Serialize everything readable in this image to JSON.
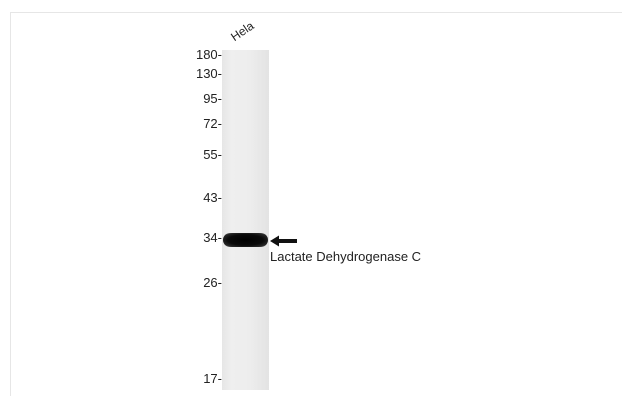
{
  "lane": {
    "label": "Hela"
  },
  "markers": [
    {
      "label": "180-"
    },
    {
      "label": "130-"
    },
    {
      "label": "95-"
    },
    {
      "label": "72-"
    },
    {
      "label": "55-"
    },
    {
      "label": "43-"
    },
    {
      "label": "34-"
    },
    {
      "label": "26-"
    },
    {
      "label": "17-"
    }
  ],
  "band": {
    "label": "Lactate Dehydrogenase C"
  },
  "colors": {
    "band": "#000000",
    "lane": "#ececec",
    "text": "#222222"
  },
  "icons": {
    "arrow": "left-arrow-icon"
  }
}
